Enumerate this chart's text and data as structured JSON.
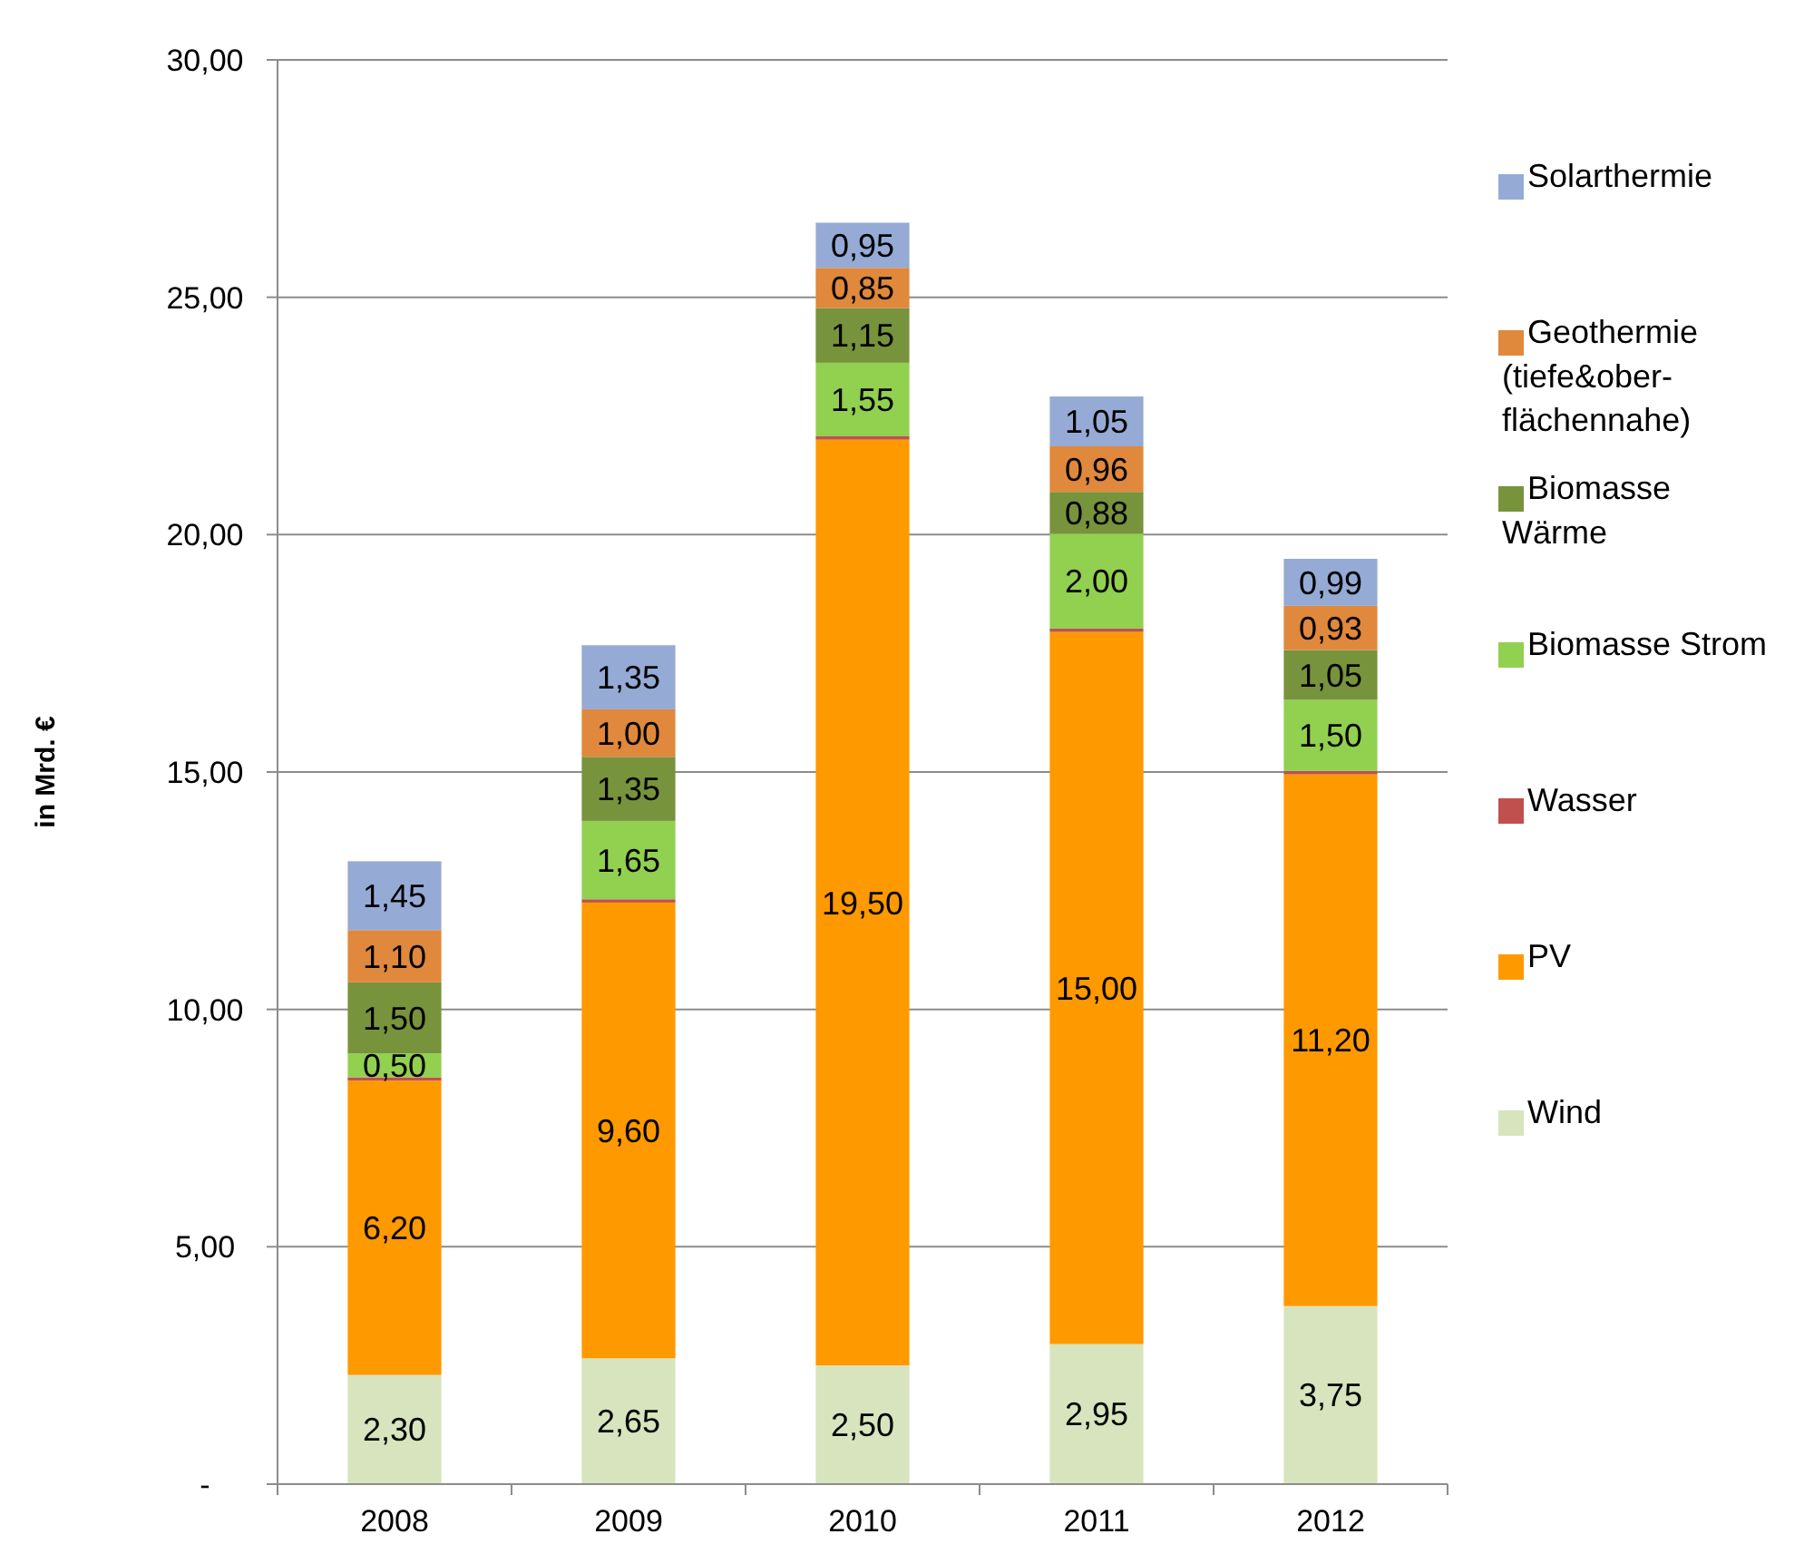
{
  "chart_data": {
    "type": "bar",
    "stacked": true,
    "ylabel": "in Mrd. €",
    "categories": [
      "2008",
      "2009",
      "2010",
      "2011",
      "2012"
    ],
    "ylim": [
      0,
      30
    ],
    "yticks": [
      {
        "value": 0,
        "label": "-"
      },
      {
        "value": 5,
        "label": "5,00"
      },
      {
        "value": 10,
        "label": "10,00"
      },
      {
        "value": 15,
        "label": "15,00"
      },
      {
        "value": 20,
        "label": "20,00"
      },
      {
        "value": 25,
        "label": "25,00"
      },
      {
        "value": 30,
        "label": "30,00"
      }
    ],
    "grid": "y",
    "legend": "right",
    "series": [
      {
        "name": "Wind",
        "color": "#d7e4bd",
        "values": [
          2.3,
          2.65,
          2.5,
          2.95,
          3.75
        ],
        "value_labels": [
          "2,30",
          "2,65",
          "2,50",
          "2,95",
          "3,75"
        ]
      },
      {
        "name": "PV",
        "color": "#ff9900",
        "values": [
          6.2,
          9.6,
          19.5,
          15.0,
          11.2
        ],
        "value_labels": [
          "6,20",
          "9,60",
          "19,50",
          "15,00",
          "11,20"
        ]
      },
      {
        "name": "Wasser",
        "color": "#c0504d",
        "values": [
          0.07,
          0.07,
          0.07,
          0.07,
          0.07
        ]
      },
      {
        "name": "Biomasse Strom",
        "color": "#92d050",
        "values": [
          0.5,
          1.65,
          1.55,
          2.0,
          1.5
        ],
        "value_labels": [
          "0,50",
          "1,65",
          "1,55",
          "2,00",
          "1,50"
        ]
      },
      {
        "name": "Biomasse\nWärme",
        "color": "#77933c",
        "values": [
          1.5,
          1.35,
          1.15,
          0.88,
          1.05
        ],
        "value_labels": [
          "1,50",
          "1,35",
          "1,15",
          "0,88",
          "1,05"
        ]
      },
      {
        "name": "Geothermie\n(tiefe&ober-\nflächennahe)",
        "color": "#e0883c",
        "values": [
          1.1,
          1.0,
          0.85,
          0.96,
          0.93
        ],
        "value_labels": [
          "1,10",
          "1,00",
          "0,85",
          "0,96",
          "0,93"
        ]
      },
      {
        "name": "Solarthermie",
        "color": "#95abd5",
        "values": [
          1.45,
          1.35,
          0.95,
          1.05,
          0.99
        ],
        "value_labels": [
          "1,45",
          "1,35",
          "0,95",
          "1,05",
          "0,99"
        ]
      }
    ]
  }
}
